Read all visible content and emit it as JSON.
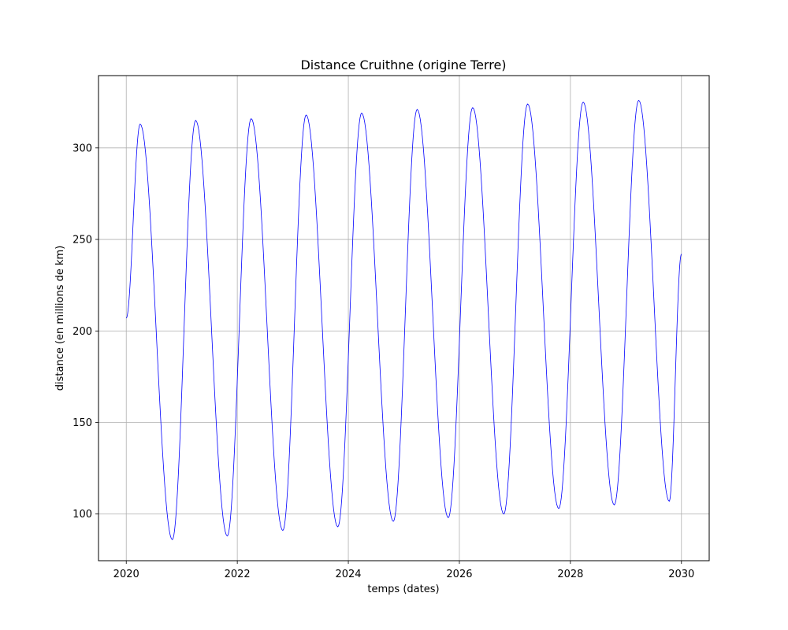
{
  "chart_data": {
    "type": "line",
    "title": "Distance Cruithne (origine Terre)",
    "xlabel": "temps (dates)",
    "ylabel": "distance (en millions de km)",
    "xlim": [
      2019.5,
      2030.5
    ],
    "ylim": [
      74.5,
      339.5
    ],
    "x_ticks": [
      2020,
      2022,
      2024,
      2026,
      2028,
      2030
    ],
    "x_tick_labels": [
      "2020",
      "2022",
      "2024",
      "2026",
      "2028",
      "2030"
    ],
    "y_ticks": [
      100,
      150,
      200,
      250,
      300
    ],
    "y_tick_labels": [
      "100",
      "150",
      "200",
      "250",
      "300"
    ],
    "grid": true,
    "line_color": "#0000ff",
    "series": [
      {
        "x": [
          2020.0,
          2020.25,
          2020.83,
          2021.25,
          2021.82,
          2022.25,
          2022.82,
          2023.24,
          2023.81,
          2024.24,
          2024.81,
          2025.24,
          2025.8,
          2026.24,
          2026.8,
          2027.23,
          2027.79,
          2028.23,
          2028.79,
          2029.23,
          2029.78,
          2030.0
        ],
        "y": [
          207,
          313,
          86,
          315,
          88,
          316,
          91,
          318,
          93,
          319,
          96,
          321,
          98,
          322,
          100,
          324,
          103,
          325,
          105,
          326,
          107,
          242
        ]
      }
    ]
  }
}
